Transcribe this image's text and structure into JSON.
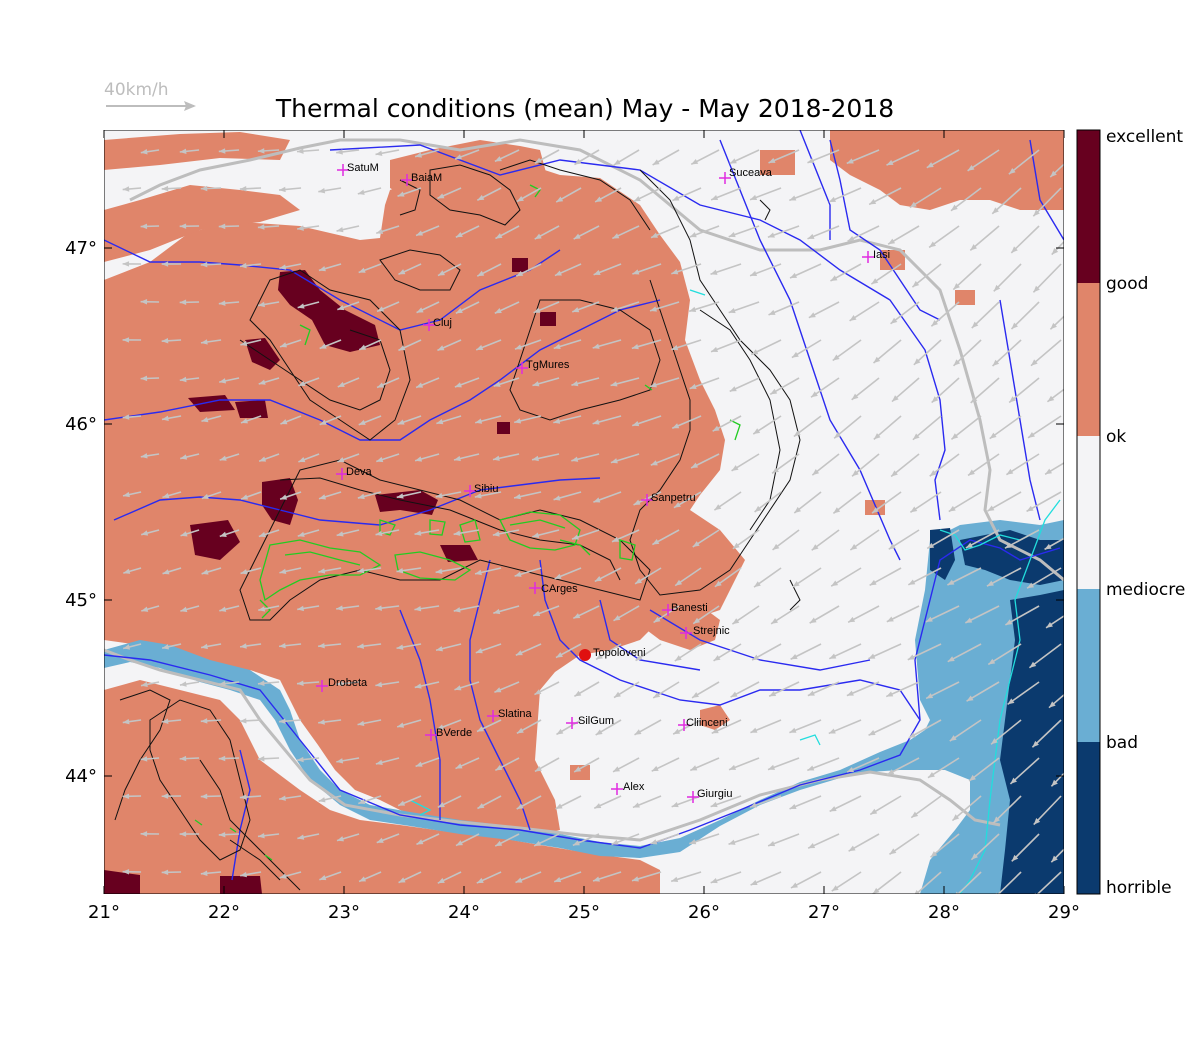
{
  "title": "Thermal conditions (mean) May - May  2018-2018",
  "wind_reference": {
    "label": "40km/h"
  },
  "axes": {
    "x_ticks": [
      "21°",
      "22°",
      "23°",
      "24°",
      "25°",
      "26°",
      "27°",
      "28°",
      "29°"
    ],
    "y_ticks": [
      "47°",
      "46°",
      "45°",
      "44°"
    ]
  },
  "legend": {
    "categories": [
      "excellent",
      "good",
      "ok",
      "mediocre",
      "bad",
      "horrible"
    ],
    "colors": {
      "excellent": "#67001f",
      "good": "#e0856a",
      "ok": "#f4f4f6",
      "mediocre": "#f4f4f6",
      "bad": "#6aaed3",
      "horrible": "#0b3a6e"
    }
  },
  "cities": [
    {
      "name": "SatuM"
    },
    {
      "name": "BaiaM"
    },
    {
      "name": "Suceava"
    },
    {
      "name": "Iasi"
    },
    {
      "name": "Cluj"
    },
    {
      "name": "TgMures"
    },
    {
      "name": "Deva"
    },
    {
      "name": "Sibiu"
    },
    {
      "name": "Sanpetru"
    },
    {
      "name": "CArges"
    },
    {
      "name": "Banesti"
    },
    {
      "name": "Strejnic"
    },
    {
      "name": "Topoloveni"
    },
    {
      "name": "Drobeta"
    },
    {
      "name": "Slatina"
    },
    {
      "name": "SilGum"
    },
    {
      "name": "Cliinceni"
    },
    {
      "name": "BVerde"
    },
    {
      "name": "Alex"
    },
    {
      "name": "Giurgiu"
    }
  ],
  "colors": {
    "river": "#2a2af0",
    "border": "#bdbdbd",
    "wind": "#c4c4c4",
    "city_marker": "#e02be0",
    "selected_marker": "#e01010",
    "contour": "#111111",
    "contour_green": "#22cc22",
    "coast": "#22dddd"
  }
}
